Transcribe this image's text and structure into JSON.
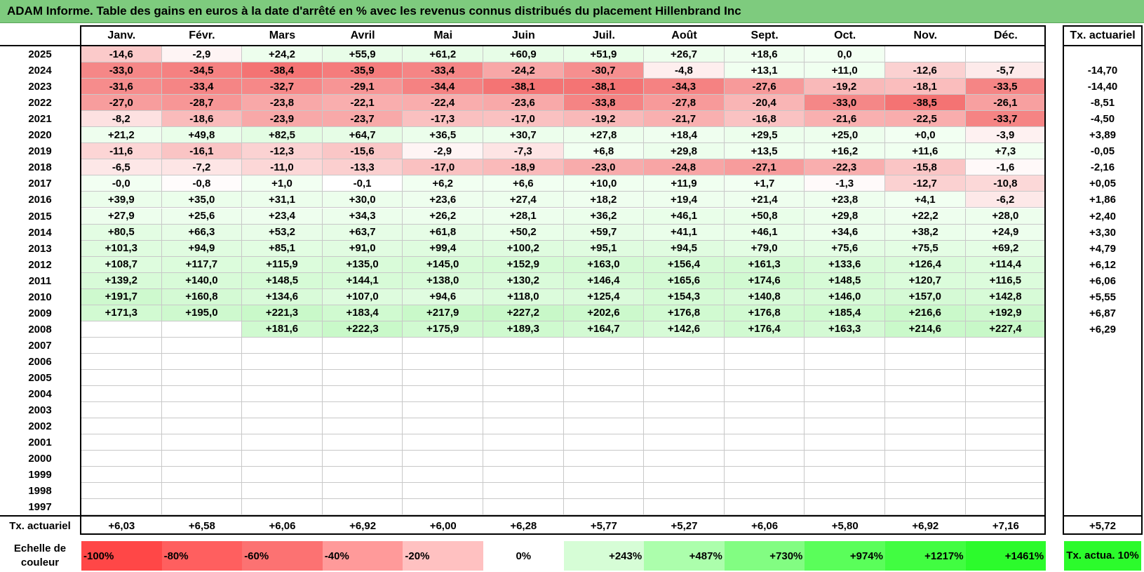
{
  "title": "ADAM Informe. Table des gains en euros à la date d'arrêté en % avec les revenus connus distribués du placement Hillenbrand Inc",
  "chart_data": {
    "type": "heatmap",
    "columns": [
      "Janv.",
      "Févr.",
      "Mars",
      "Avril",
      "Mai",
      "Juin",
      "Juil.",
      "Août",
      "Sept.",
      "Oct.",
      "Nov.",
      "Déc."
    ],
    "right_header": "Tx. actuariel",
    "rows": [
      {
        "year": "2025",
        "values": [
          "-14,6",
          "-2,9",
          "+24,2",
          "+55,9",
          "+61,2",
          "+60,9",
          "+51,9",
          "+26,7",
          "+18,6",
          "0,0",
          "",
          ""
        ],
        "rate": ""
      },
      {
        "year": "2024",
        "values": [
          "-33,0",
          "-34,5",
          "-38,4",
          "-35,9",
          "-33,4",
          "-24,2",
          "-30,7",
          "-4,8",
          "+13,1",
          "+11,0",
          "-12,6",
          "-5,7"
        ],
        "rate": "-14,70"
      },
      {
        "year": "2023",
        "values": [
          "-31,6",
          "-33,4",
          "-32,7",
          "-29,1",
          "-34,4",
          "-38,1",
          "-38,1",
          "-34,3",
          "-27,6",
          "-19,2",
          "-18,1",
          "-33,5"
        ],
        "rate": "-14,40"
      },
      {
        "year": "2022",
        "values": [
          "-27,0",
          "-28,7",
          "-23,8",
          "-22,1",
          "-22,4",
          "-23,6",
          "-33,8",
          "-27,8",
          "-20,4",
          "-33,0",
          "-38,5",
          "-26,1"
        ],
        "rate": "-8,51"
      },
      {
        "year": "2021",
        "values": [
          "-8,2",
          "-18,6",
          "-23,9",
          "-23,7",
          "-17,3",
          "-17,0",
          "-19,2",
          "-21,7",
          "-16,8",
          "-21,6",
          "-22,5",
          "-33,7"
        ],
        "rate": "-4,50"
      },
      {
        "year": "2020",
        "values": [
          "+21,2",
          "+49,8",
          "+82,5",
          "+64,7",
          "+36,5",
          "+30,7",
          "+27,8",
          "+18,4",
          "+29,5",
          "+25,0",
          "+0,0",
          "-3,9"
        ],
        "rate": "+3,89"
      },
      {
        "year": "2019",
        "values": [
          "-11,6",
          "-16,1",
          "-12,3",
          "-15,6",
          "-2,9",
          "-7,3",
          "+6,8",
          "+29,8",
          "+13,5",
          "+16,2",
          "+11,6",
          "+7,3"
        ],
        "rate": "-0,05"
      },
      {
        "year": "2018",
        "values": [
          "-6,5",
          "-7,2",
          "-11,0",
          "-13,3",
          "-17,0",
          "-18,9",
          "-23,0",
          "-24,8",
          "-27,1",
          "-22,3",
          "-15,8",
          "-1,6"
        ],
        "rate": "-2,16"
      },
      {
        "year": "2017",
        "values": [
          "-0,0",
          "-0,8",
          "+1,0",
          "-0,1",
          "+6,2",
          "+6,6",
          "+10,0",
          "+11,9",
          "+1,7",
          "-1,3",
          "-12,7",
          "-10,8"
        ],
        "rate": "+0,05"
      },
      {
        "year": "2016",
        "values": [
          "+39,9",
          "+35,0",
          "+31,1",
          "+30,0",
          "+23,6",
          "+27,4",
          "+18,2",
          "+19,4",
          "+21,4",
          "+23,8",
          "+4,1",
          "-6,2"
        ],
        "rate": "+1,86"
      },
      {
        "year": "2015",
        "values": [
          "+27,9",
          "+25,6",
          "+23,4",
          "+34,3",
          "+26,2",
          "+28,1",
          "+36,2",
          "+46,1",
          "+50,8",
          "+29,8",
          "+22,2",
          "+28,0"
        ],
        "rate": "+2,40"
      },
      {
        "year": "2014",
        "values": [
          "+80,5",
          "+66,3",
          "+53,2",
          "+63,7",
          "+61,8",
          "+50,2",
          "+59,7",
          "+41,1",
          "+46,1",
          "+34,6",
          "+38,2",
          "+24,9"
        ],
        "rate": "+3,30"
      },
      {
        "year": "2013",
        "values": [
          "+101,3",
          "+94,9",
          "+85,1",
          "+91,0",
          "+99,4",
          "+100,2",
          "+95,1",
          "+94,5",
          "+79,0",
          "+75,6",
          "+75,5",
          "+69,2"
        ],
        "rate": "+4,79"
      },
      {
        "year": "2012",
        "values": [
          "+108,7",
          "+117,7",
          "+115,9",
          "+135,0",
          "+145,0",
          "+152,9",
          "+163,0",
          "+156,4",
          "+161,3",
          "+133,6",
          "+126,4",
          "+114,4"
        ],
        "rate": "+6,12"
      },
      {
        "year": "2011",
        "values": [
          "+139,2",
          "+140,0",
          "+148,5",
          "+144,1",
          "+138,0",
          "+130,2",
          "+146,4",
          "+165,6",
          "+174,6",
          "+148,5",
          "+120,7",
          "+116,5"
        ],
        "rate": "+6,06"
      },
      {
        "year": "2010",
        "values": [
          "+191,7",
          "+160,8",
          "+134,6",
          "+107,0",
          "+94,6",
          "+118,0",
          "+125,4",
          "+154,3",
          "+140,8",
          "+146,0",
          "+157,0",
          "+142,8"
        ],
        "rate": "+5,55"
      },
      {
        "year": "2009",
        "values": [
          "+171,3",
          "+195,0",
          "+221,3",
          "+183,4",
          "+217,9",
          "+227,2",
          "+202,6",
          "+176,8",
          "+176,8",
          "+185,4",
          "+216,6",
          "+192,9"
        ],
        "rate": "+6,87"
      },
      {
        "year": "2008",
        "values": [
          "",
          "",
          "+181,6",
          "+222,3",
          "+175,9",
          "+189,3",
          "+164,7",
          "+142,6",
          "+176,4",
          "+163,3",
          "+214,6",
          "+227,4"
        ],
        "rate": "+6,29"
      },
      {
        "year": "2007",
        "values": [
          "",
          "",
          "",
          "",
          "",
          "",
          "",
          "",
          "",
          "",
          "",
          ""
        ],
        "rate": ""
      },
      {
        "year": "2006",
        "values": [
          "",
          "",
          "",
          "",
          "",
          "",
          "",
          "",
          "",
          "",
          "",
          ""
        ],
        "rate": ""
      },
      {
        "year": "2005",
        "values": [
          "",
          "",
          "",
          "",
          "",
          "",
          "",
          "",
          "",
          "",
          "",
          ""
        ],
        "rate": ""
      },
      {
        "year": "2004",
        "values": [
          "",
          "",
          "",
          "",
          "",
          "",
          "",
          "",
          "",
          "",
          "",
          ""
        ],
        "rate": ""
      },
      {
        "year": "2003",
        "values": [
          "",
          "",
          "",
          "",
          "",
          "",
          "",
          "",
          "",
          "",
          "",
          ""
        ],
        "rate": ""
      },
      {
        "year": "2002",
        "values": [
          "",
          "",
          "",
          "",
          "",
          "",
          "",
          "",
          "",
          "",
          "",
          ""
        ],
        "rate": ""
      },
      {
        "year": "2001",
        "values": [
          "",
          "",
          "",
          "",
          "",
          "",
          "",
          "",
          "",
          "",
          "",
          ""
        ],
        "rate": ""
      },
      {
        "year": "2000",
        "values": [
          "",
          "",
          "",
          "",
          "",
          "",
          "",
          "",
          "",
          "",
          "",
          ""
        ],
        "rate": ""
      },
      {
        "year": "1999",
        "values": [
          "",
          "",
          "",
          "",
          "",
          "",
          "",
          "",
          "",
          "",
          "",
          ""
        ],
        "rate": ""
      },
      {
        "year": "1998",
        "values": [
          "",
          "",
          "",
          "",
          "",
          "",
          "",
          "",
          "",
          "",
          "",
          ""
        ],
        "rate": ""
      },
      {
        "year": "1997",
        "values": [
          "",
          "",
          "",
          "",
          "",
          "",
          "",
          "",
          "",
          "",
          "",
          ""
        ],
        "rate": ""
      }
    ],
    "footer": {
      "label": "Tx. actuariel",
      "values": [
        "+6,03",
        "+6,58",
        "+6,06",
        "+6,92",
        "+6,00",
        "+6,28",
        "+5,77",
        "+5,27",
        "+6,06",
        "+5,80",
        "+6,92",
        "+7,16"
      ],
      "overall": "+5,72"
    },
    "legend": {
      "label": "Echelle de couleur",
      "items": [
        {
          "text": "-100%",
          "color": "#ff4747"
        },
        {
          "text": "-80%",
          "color": "#ff5f5f"
        },
        {
          "text": "-60%",
          "color": "#fc7272"
        },
        {
          "text": "-40%",
          "color": "#ff9a9a"
        },
        {
          "text": "-20%",
          "color": "#ffc1c1"
        },
        {
          "text": "0%",
          "color": "#ffffff"
        },
        {
          "text": "+243%",
          "color": "#d6fdd6"
        },
        {
          "text": "+487%",
          "color": "#acfeac"
        },
        {
          "text": "+730%",
          "color": "#82fd82"
        },
        {
          "text": "+974%",
          "color": "#5afe5a"
        },
        {
          "text": "+1217%",
          "color": "#41fd41"
        },
        {
          "text": "+1461%",
          "color": "#2cfb2c"
        }
      ],
      "right_label": "Tx. actua. 10%",
      "right_color": "#2cfb2c"
    },
    "title_color": "#7ecb7e"
  }
}
